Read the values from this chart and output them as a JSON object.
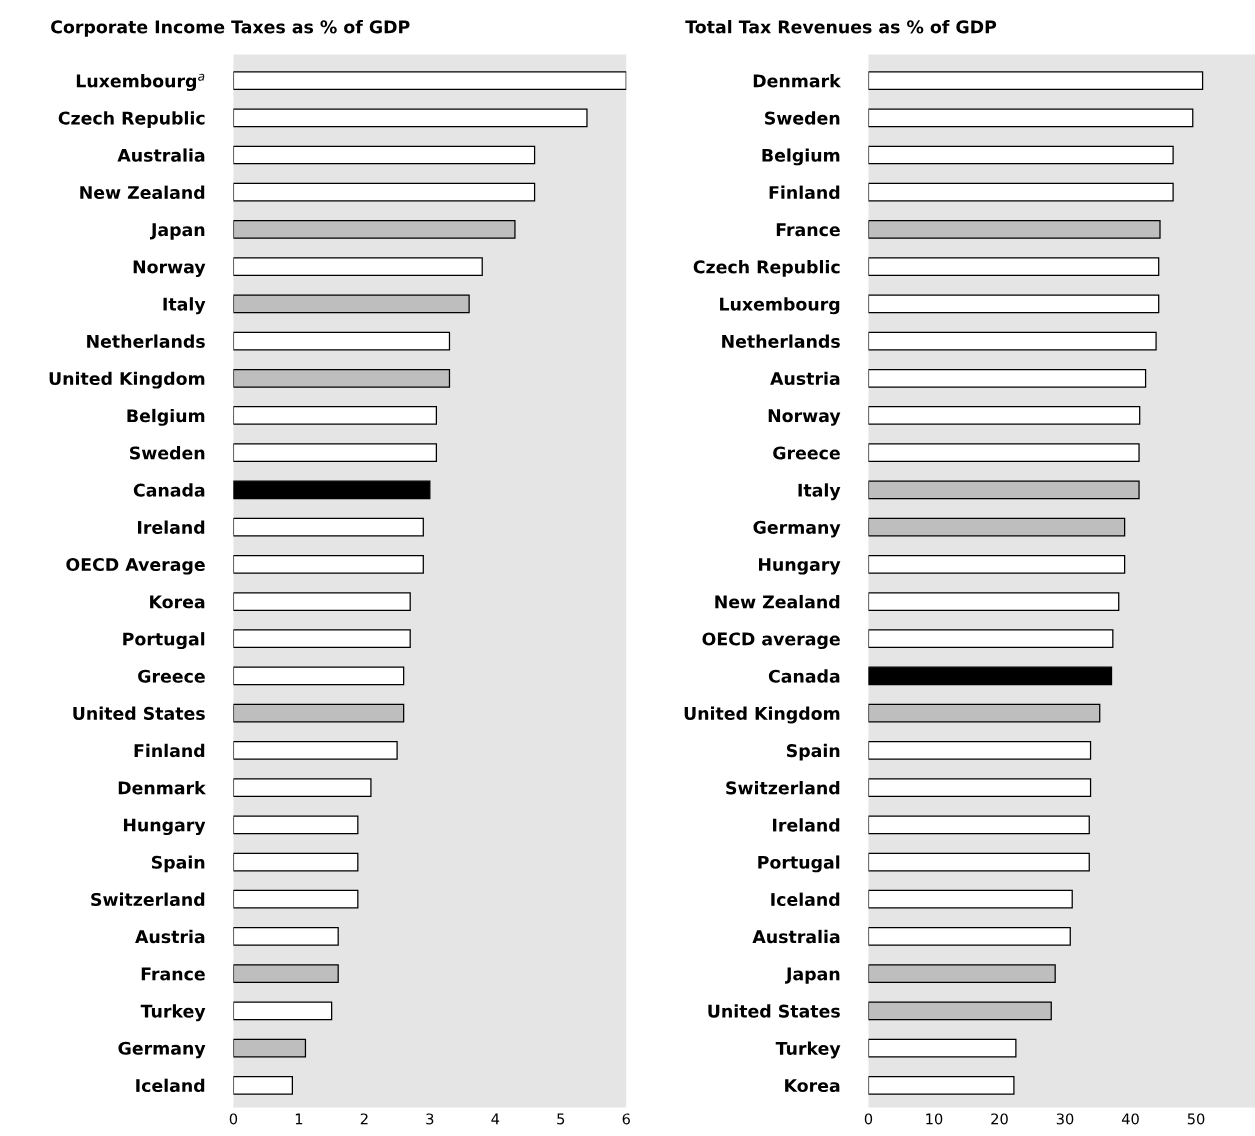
{
  "chart_data": [
    {
      "type": "bar",
      "orientation": "horizontal",
      "title": "Corporate Income Taxes as % of GDP",
      "categories": [
        "Luxembourg$^{a}$",
        "Czech Republic",
        "Australia",
        "New Zealand",
        "Japan",
        "Norway",
        "Italy",
        "Netherlands",
        "United Kingdom",
        "Belgium",
        "Sweden",
        "Canada",
        "Ireland",
        "OECD Average",
        "Korea",
        "Portugal",
        "Greece",
        "United States",
        "Finland",
        "Denmark",
        "Hungary",
        "Spain",
        "Switzerland",
        "Austria",
        "France",
        "Turkey",
        "Germany",
        "Iceland"
      ],
      "values": [
        6.0,
        5.4,
        4.6,
        4.6,
        4.3,
        3.8,
        3.6,
        3.3,
        3.3,
        3.1,
        3.1,
        3.0,
        2.9,
        2.9,
        2.7,
        2.7,
        2.6,
        2.6,
        2.5,
        2.1,
        1.9,
        1.9,
        1.9,
        1.6,
        1.6,
        1.5,
        1.1,
        0.9
      ],
      "colors": [
        "#ffffff",
        "#ffffff",
        "#ffffff",
        "#ffffff",
        "#bebebe",
        "#ffffff",
        "#bebebe",
        "#ffffff",
        "#bebebe",
        "#ffffff",
        "#ffffff",
        "#000000",
        "#ffffff",
        "#ffffff",
        "#ffffff",
        "#ffffff",
        "#ffffff",
        "#bebebe",
        "#ffffff",
        "#ffffff",
        "#ffffff",
        "#ffffff",
        "#ffffff",
        "#ffffff",
        "#bebebe",
        "#ffffff",
        "#bebebe",
        "#ffffff"
      ],
      "xlim": [
        0,
        6
      ],
      "xticks": [
        0,
        1,
        2,
        3,
        4,
        5,
        6
      ],
      "grid": false,
      "legend": false
    },
    {
      "type": "bar",
      "orientation": "horizontal",
      "title": "Total Tax Revenues as % of GDP",
      "categories": [
        "Denmark",
        "Sweden",
        "Belgium",
        "Finland",
        "France",
        "Czech Republic",
        "Luxembourg",
        "Netherlands",
        "Austria",
        "Norway",
        "Greece",
        "Italy",
        "Germany",
        "Hungary",
        "New Zealand",
        "OECD average",
        "Canada",
        "United Kingdom",
        "Spain",
        "Switzerland",
        "Ireland",
        "Portugal",
        "Iceland",
        "Australia",
        "Japan",
        "United States",
        "Turkey",
        "Korea"
      ],
      "values": [
        51,
        49.5,
        46.5,
        46.5,
        44.5,
        44.3,
        44.3,
        43.9,
        42.3,
        41.4,
        41.3,
        41.3,
        39.1,
        39.1,
        38.2,
        37.3,
        37.1,
        35.3,
        33.9,
        33.9,
        33.7,
        33.7,
        31.1,
        30.8,
        28.5,
        27.9,
        22.5,
        22.2
      ],
      "colors": [
        "#ffffff",
        "#ffffff",
        "#ffffff",
        "#ffffff",
        "#bebebe",
        "#ffffff",
        "#ffffff",
        "#ffffff",
        "#ffffff",
        "#ffffff",
        "#ffffff",
        "#bebebe",
        "#bebebe",
        "#ffffff",
        "#ffffff",
        "#ffffff",
        "#000000",
        "#bebebe",
        "#ffffff",
        "#ffffff",
        "#ffffff",
        "#ffffff",
        "#ffffff",
        "#ffffff",
        "#bebebe",
        "#bebebe",
        "#ffffff",
        "#ffffff"
      ],
      "xlim": [
        0,
        59
      ],
      "xticks": [
        0,
        10,
        20,
        30,
        40,
        50
      ],
      "grid": false,
      "legend": false
    }
  ]
}
